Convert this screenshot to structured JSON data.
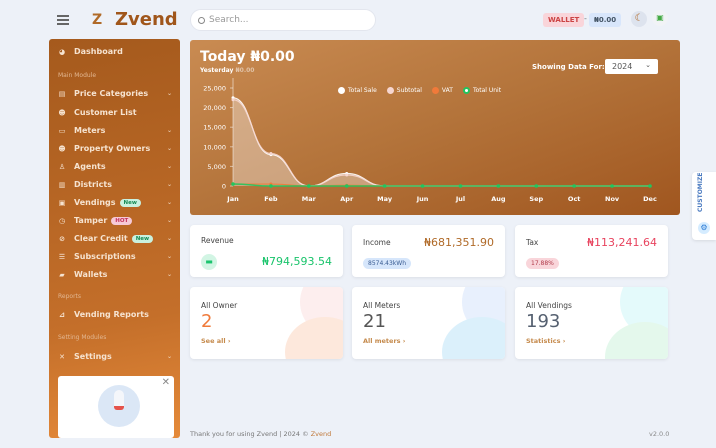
{
  "header": {
    "brand": "Zvend",
    "logo_letter": "Z",
    "search_placeholder": "Search...",
    "wallet_label": "WALLET",
    "wallet_sep": "-",
    "wallet_value": "₦0.00",
    "theme_icon": "moon-icon"
  },
  "sidebar": {
    "dashboard": "Dashboard",
    "main_module": "Main Module",
    "items": [
      {
        "label": "Price Categories",
        "icon": "tag-list-icon",
        "chev": true
      },
      {
        "label": "Customer List",
        "icon": "users-icon",
        "chev": false
      },
      {
        "label": "Meters",
        "icon": "meter-icon",
        "chev": true
      },
      {
        "label": "Property Owners",
        "icon": "users-icon",
        "chev": true
      },
      {
        "label": "Agents",
        "icon": "user-icon",
        "chev": true
      },
      {
        "label": "Districts",
        "icon": "building-icon",
        "chev": true
      },
      {
        "label": "Vendings",
        "icon": "vending-icon",
        "chev": true,
        "badge": "New"
      },
      {
        "label": "Tamper",
        "icon": "tamper-icon",
        "chev": true,
        "badge": "HOT"
      },
      {
        "label": "Clear Credit",
        "icon": "ban-icon",
        "chev": true,
        "badge": "New"
      },
      {
        "label": "Subscriptions",
        "icon": "list-icon",
        "chev": true
      },
      {
        "label": "Wallets",
        "icon": "wallet-icon",
        "chev": true
      }
    ],
    "reports": "Reports",
    "vending_reports": "Vending Reports",
    "setting_modules": "Setting Modules",
    "settings": "Settings"
  },
  "chart_card": {
    "today": "Today ₦0.00",
    "yesterday_label": "Yesterday",
    "yesterday_value": "₦0.00",
    "showing": "Showing Data For:",
    "year": "2024"
  },
  "chart_data": {
    "type": "line",
    "categories": [
      "Jan",
      "Feb",
      "Mar",
      "Apr",
      "May",
      "Jun",
      "Jul",
      "Aug",
      "Sep",
      "Oct",
      "Nov",
      "Dec"
    ],
    "yticks": [
      "0",
      "5,000",
      "10,000",
      "15,000",
      "20,000",
      "25,000"
    ],
    "ylim": [
      0,
      25000
    ],
    "legend": "top",
    "series": [
      {
        "name": "Total Sale",
        "color": "#ffffff",
        "values": [
          22500,
          8000,
          0,
          3200,
          0,
          0,
          0,
          0,
          0,
          0,
          0,
          0
        ]
      },
      {
        "name": "Subtotal",
        "color": "#f6d6d0",
        "values": [
          22000,
          8300,
          0,
          2800,
          0,
          0,
          0,
          0,
          0,
          0,
          0,
          0
        ]
      },
      {
        "name": "VAT",
        "color": "#f07a3a",
        "values": [
          500,
          500,
          0,
          200,
          0,
          0,
          0,
          0,
          0,
          0,
          0,
          0
        ]
      },
      {
        "name": "Total Unit",
        "color": "#22c55e",
        "values": [
          500,
          0,
          0,
          0,
          0,
          0,
          0,
          0,
          0,
          0,
          0,
          0
        ]
      }
    ]
  },
  "stats": {
    "revenue": {
      "label": "Revenue",
      "value": "₦794,593.54"
    },
    "income": {
      "label": "Income",
      "value": "₦681,351.90",
      "pill": "8574.43kWh"
    },
    "tax": {
      "label": "Tax",
      "value": "₦113,241.64",
      "pill": "17.88%"
    },
    "owners": {
      "label": "All Owner",
      "count": "2",
      "link": "See all ›"
    },
    "meters": {
      "label": "All Meters",
      "count": "21",
      "link": "All meters ›"
    },
    "vendings": {
      "label": "All Vendings",
      "count": "193",
      "link": "Statistics ›"
    }
  },
  "footer": {
    "text": "Thank you for using Zvend | 2024 © ",
    "brand": "Zvend",
    "version": "v2.0.0"
  },
  "customize": "CUSTOMIZE"
}
